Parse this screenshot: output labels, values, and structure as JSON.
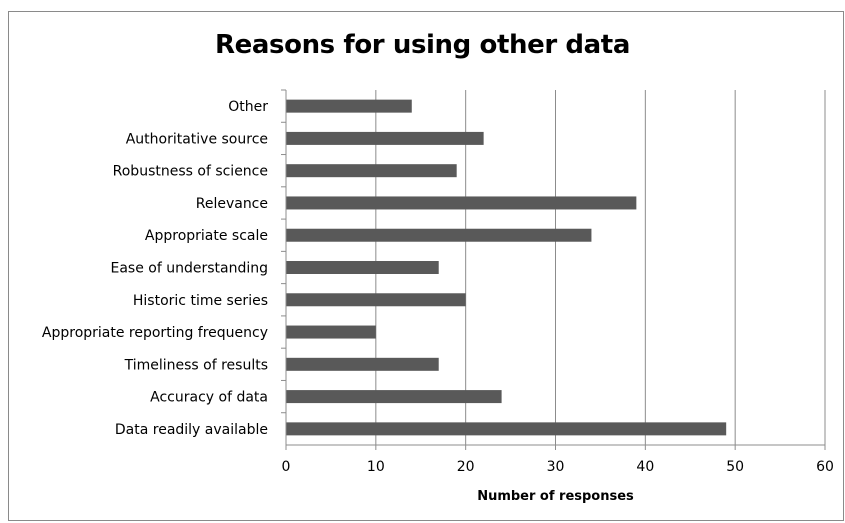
{
  "chart_data": {
    "type": "bar",
    "orientation": "horizontal",
    "title": "Reasons for using other data",
    "xlabel": "Number of responses",
    "ylabel": "",
    "xlim": [
      0,
      60
    ],
    "x_ticks": [
      0,
      10,
      20,
      30,
      40,
      50,
      60
    ],
    "grid": true,
    "legend": "none",
    "bar_color": "#595959",
    "categories": [
      "Other",
      "Authoritative source",
      "Robustness of science",
      "Relevance",
      "Appropriate scale",
      "Ease of understanding",
      "Historic time series",
      "Appropriate reporting frequency",
      "Timeliness of results",
      "Accuracy of data",
      "Data readily available"
    ],
    "values": [
      14,
      22,
      19,
      39,
      34,
      17,
      20,
      10,
      17,
      24,
      49
    ]
  }
}
